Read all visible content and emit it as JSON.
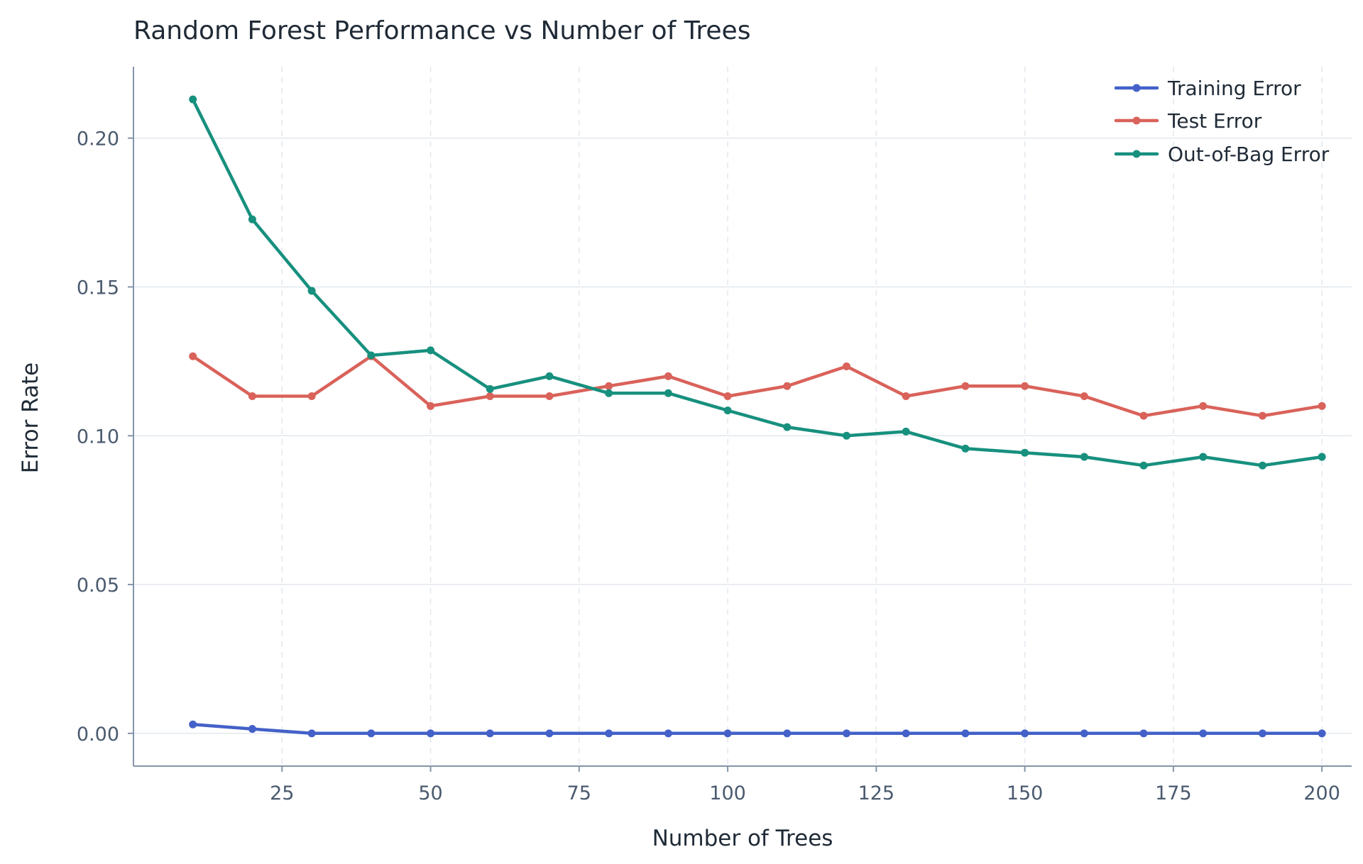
{
  "chart_data": {
    "type": "line",
    "title": "Random Forest Performance vs Number of Trees",
    "xlabel": "Number of Trees",
    "ylabel": "Error Rate",
    "xlim": [
      0,
      205
    ],
    "ylim": [
      -0.011,
      0.224
    ],
    "xticks": [
      25,
      50,
      75,
      100,
      125,
      150,
      175,
      200
    ],
    "xtick_labels": [
      "25",
      "50",
      "75",
      "100",
      "125",
      "150",
      "175",
      "200"
    ],
    "yticks": [
      0.0,
      0.05,
      0.1,
      0.15,
      0.2
    ],
    "ytick_labels": [
      "0.00",
      "0.05",
      "0.10",
      "0.15",
      "0.20"
    ],
    "grid": true,
    "legend_position": "top-right",
    "x": [
      10,
      20,
      30,
      40,
      50,
      60,
      70,
      80,
      90,
      100,
      110,
      120,
      130,
      140,
      150,
      160,
      170,
      180,
      190,
      200
    ],
    "series": [
      {
        "name": "Training Error",
        "color": "#4361c8",
        "values": [
          0.003,
          0.0015,
          0.0,
          0.0,
          0.0,
          0.0,
          0.0,
          0.0,
          0.0,
          0.0,
          0.0,
          0.0,
          0.0,
          0.0,
          0.0,
          0.0,
          0.0,
          0.0,
          0.0,
          0.0
        ]
      },
      {
        "name": "Test Error",
        "color": "#d9625a",
        "values": [
          0.1267,
          0.1133,
          0.1133,
          0.1267,
          0.11,
          0.1133,
          0.1133,
          0.1167,
          0.12,
          0.1133,
          0.1167,
          0.1233,
          0.1133,
          0.1167,
          0.1167,
          0.1133,
          0.1067,
          0.11,
          0.1067,
          0.11
        ]
      },
      {
        "name": "Out-of-Bag Error",
        "color": "#17907e",
        "values": [
          0.213,
          0.1727,
          0.1487,
          0.127,
          0.1287,
          0.1157,
          0.12,
          0.1143,
          0.1143,
          0.1085,
          0.1029,
          0.1,
          0.1014,
          0.0957,
          0.0943,
          0.0929,
          0.09,
          0.0929,
          0.09,
          0.0929
        ]
      }
    ]
  }
}
